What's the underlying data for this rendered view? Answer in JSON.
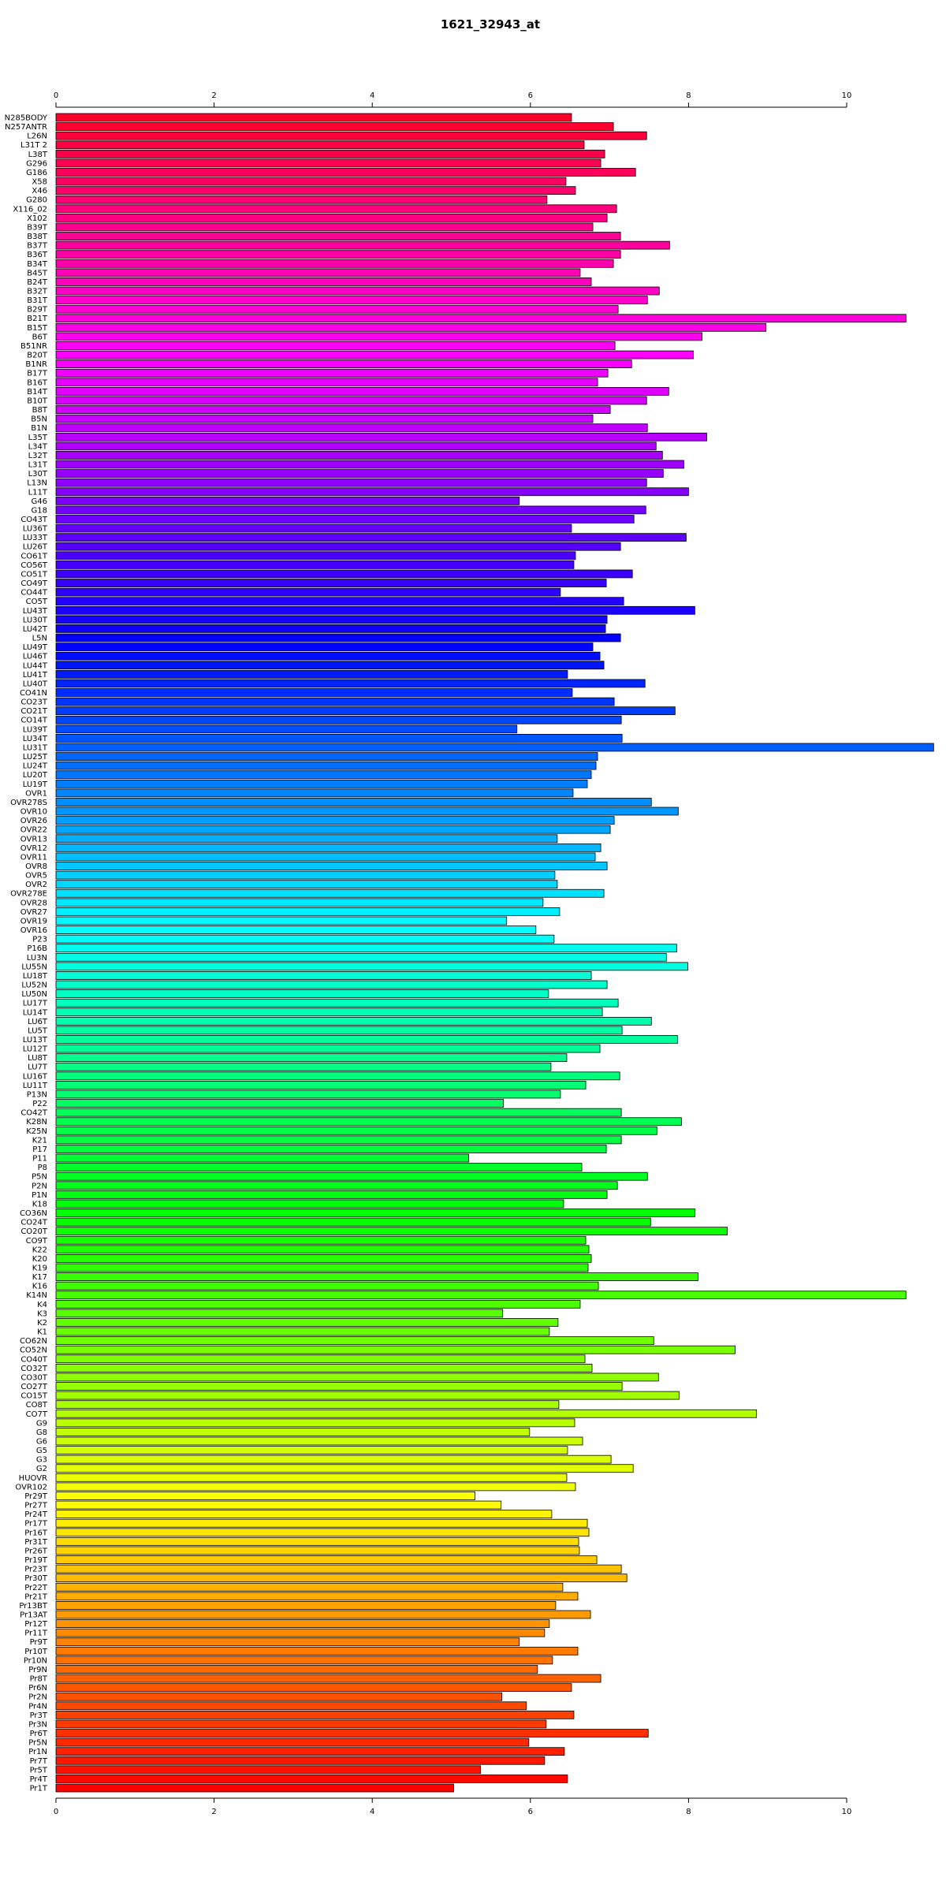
{
  "chart_data": {
    "type": "bar",
    "orientation": "horizontal",
    "title": "1621_32943_at",
    "xlabel": "",
    "ylabel": "",
    "xlim": [
      0,
      11
    ],
    "ticks": [
      0,
      2,
      4,
      6,
      8,
      10
    ],
    "tick_labels": [
      "0",
      "2",
      "4",
      "6",
      "8",
      "10"
    ],
    "grid": false,
    "axes_positions": [
      "top",
      "bottom"
    ],
    "bar_colors": "rainbow gradient red→magenta→blue→cyan→green→yellow→orange→red, one color per bar",
    "categories": [
      "N285BODY",
      "N257ANTR",
      "L26N",
      "L31T 2",
      "L38T",
      "G296",
      "G186",
      "X58",
      "X46",
      "G280",
      "X116_02",
      "X102",
      "B39T",
      "B38T",
      "B37T",
      "B36T",
      "B34T",
      "B45T",
      "B24T",
      "B32T",
      "B31T",
      "B29T",
      "B21T",
      "B15T",
      "B6T",
      "B51NR",
      "B20T",
      "B1NR",
      "B17T",
      "B16T",
      "B14T",
      "B10T",
      "B8T",
      "B5N",
      "B1N",
      "L35T",
      "L34T",
      "L32T",
      "L31T",
      "L30T",
      "L13N",
      "L11T",
      "G46",
      "G18",
      "CO43T",
      "LU36T",
      "LU33T",
      "LU26T",
      "CO61T",
      "CO56T",
      "CO51T",
      "CO49T",
      "CO44T",
      "CO5T",
      "LU43T",
      "LU30T",
      "LU42T",
      "L5N",
      "LU49T",
      "LU46T",
      "LU44T",
      "LU41T",
      "LU40T",
      "CO41N",
      "CO23T",
      "CO21T",
      "CO14T",
      "LU39T",
      "LU34T",
      "LU31T",
      "LU25T",
      "LU24T",
      "LU20T",
      "LU19T",
      "OVR1",
      "OVR278S",
      "OVR10",
      "OVR26",
      "OVR22",
      "OVR13",
      "OVR12",
      "OVR11",
      "OVR8",
      "OVR5",
      "OVR2",
      "OVR278E",
      "OVR28",
      "OVR27",
      "OVR19",
      "OVR16",
      "P23",
      "P16B",
      "LU3N",
      "LU55N",
      "LU18T",
      "LU52N",
      "LU50N",
      "LU17T",
      "LU14T",
      "LU6T",
      "LU5T",
      "LU13T",
      "LU12T",
      "LU8T",
      "LU7T",
      "LU16T",
      "LU11T",
      "P13N",
      "P22",
      "CO42T",
      "K28N",
      "K25N",
      "K21",
      "P17",
      "P11",
      "P8",
      "P5N",
      "P2N",
      "P1N",
      "K18",
      "CO36N",
      "CO24T",
      "CO20T",
      "CO9T",
      "K22",
      "K20",
      "K19",
      "K17",
      "K16",
      "K14N",
      "K4",
      "K3",
      "K2",
      "K1",
      "CO62N",
      "CO52N",
      "CO40T",
      "CO32T",
      "CO30T",
      "CO27T",
      "CO15T",
      "CO8T",
      "CO7T",
      "G9",
      "G8",
      "G6",
      "G5",
      "G3",
      "G2",
      "HUOVR",
      "OVR102",
      "Pr29T",
      "Pr27T",
      "Pr24T",
      "Pr17T",
      "Pr16T",
      "Pr31T",
      "Pr26T",
      "Pr19T",
      "Pr23T",
      "Pr30T",
      "Pr22T",
      "Pr21T",
      "Pr13BT",
      "Pr13AT",
      "Pr12T",
      "Pr11T",
      "Pr9T",
      "Pr10T",
      "Pr10N",
      "Pr9N",
      "Pr8T",
      "Pr6N",
      "Pr2N",
      "Pr4N",
      "Pr3T",
      "Pr3N",
      "Pr6T",
      "Pr5N",
      "Pr1N",
      "Pr7T",
      "Pr5T",
      "Pr4T",
      "Pr1T"
    ],
    "values": [
      6.52,
      7.05,
      7.47,
      6.68,
      6.94,
      6.89,
      7.33,
      6.45,
      6.57,
      6.21,
      7.09,
      6.97,
      6.79,
      7.14,
      7.76,
      7.14,
      7.05,
      6.63,
      6.77,
      7.63,
      7.48,
      7.11,
      10.75,
      8.98,
      8.17,
      7.07,
      8.06,
      7.28,
      6.98,
      6.85,
      7.75,
      7.47,
      7.01,
      6.79,
      7.48,
      8.23,
      7.59,
      7.67,
      7.94,
      7.68,
      7.47,
      8.0,
      5.86,
      7.46,
      7.31,
      6.52,
      7.97,
      7.14,
      6.57,
      6.55,
      7.29,
      6.96,
      6.38,
      7.18,
      8.08,
      6.97,
      6.95,
      7.14,
      6.79,
      6.88,
      6.93,
      6.47,
      7.45,
      6.53,
      7.06,
      7.83,
      7.15,
      5.83,
      7.16,
      11.1,
      6.85,
      6.83,
      6.77,
      6.72,
      6.54,
      7.53,
      7.87,
      7.06,
      7.01,
      6.34,
      6.89,
      6.82,
      6.97,
      6.31,
      6.34,
      6.93,
      6.16,
      6.37,
      5.7,
      6.07,
      6.3,
      7.85,
      7.72,
      7.99,
      6.77,
      6.97,
      6.23,
      7.11,
      6.91,
      7.53,
      7.16,
      7.86,
      6.88,
      6.46,
      6.26,
      7.13,
      6.7,
      6.38,
      5.66,
      7.15,
      7.91,
      7.6,
      7.15,
      6.96,
      5.22,
      6.65,
      7.48,
      7.1,
      6.97,
      6.42,
      8.08,
      7.52,
      8.49,
      6.7,
      6.74,
      6.77,
      6.73,
      8.12,
      6.86,
      10.75,
      6.63,
      5.65,
      6.35,
      6.24,
      7.56,
      8.59,
      6.69,
      6.78,
      7.62,
      7.16,
      7.88,
      6.36,
      8.86,
      6.56,
      5.99,
      6.66,
      6.47,
      7.02,
      7.3,
      6.46,
      6.57,
      5.3,
      5.63,
      6.27,
      6.72,
      6.74,
      6.61,
      6.62,
      6.84,
      7.15,
      7.22,
      6.41,
      6.6,
      6.32,
      6.76,
      6.24,
      6.18,
      5.86,
      6.6,
      6.28,
      6.09,
      6.89,
      6.52,
      5.64,
      5.95,
      6.55,
      6.2,
      7.49,
      5.98,
      6.43,
      6.18,
      5.37,
      6.47,
      5.03
    ]
  }
}
